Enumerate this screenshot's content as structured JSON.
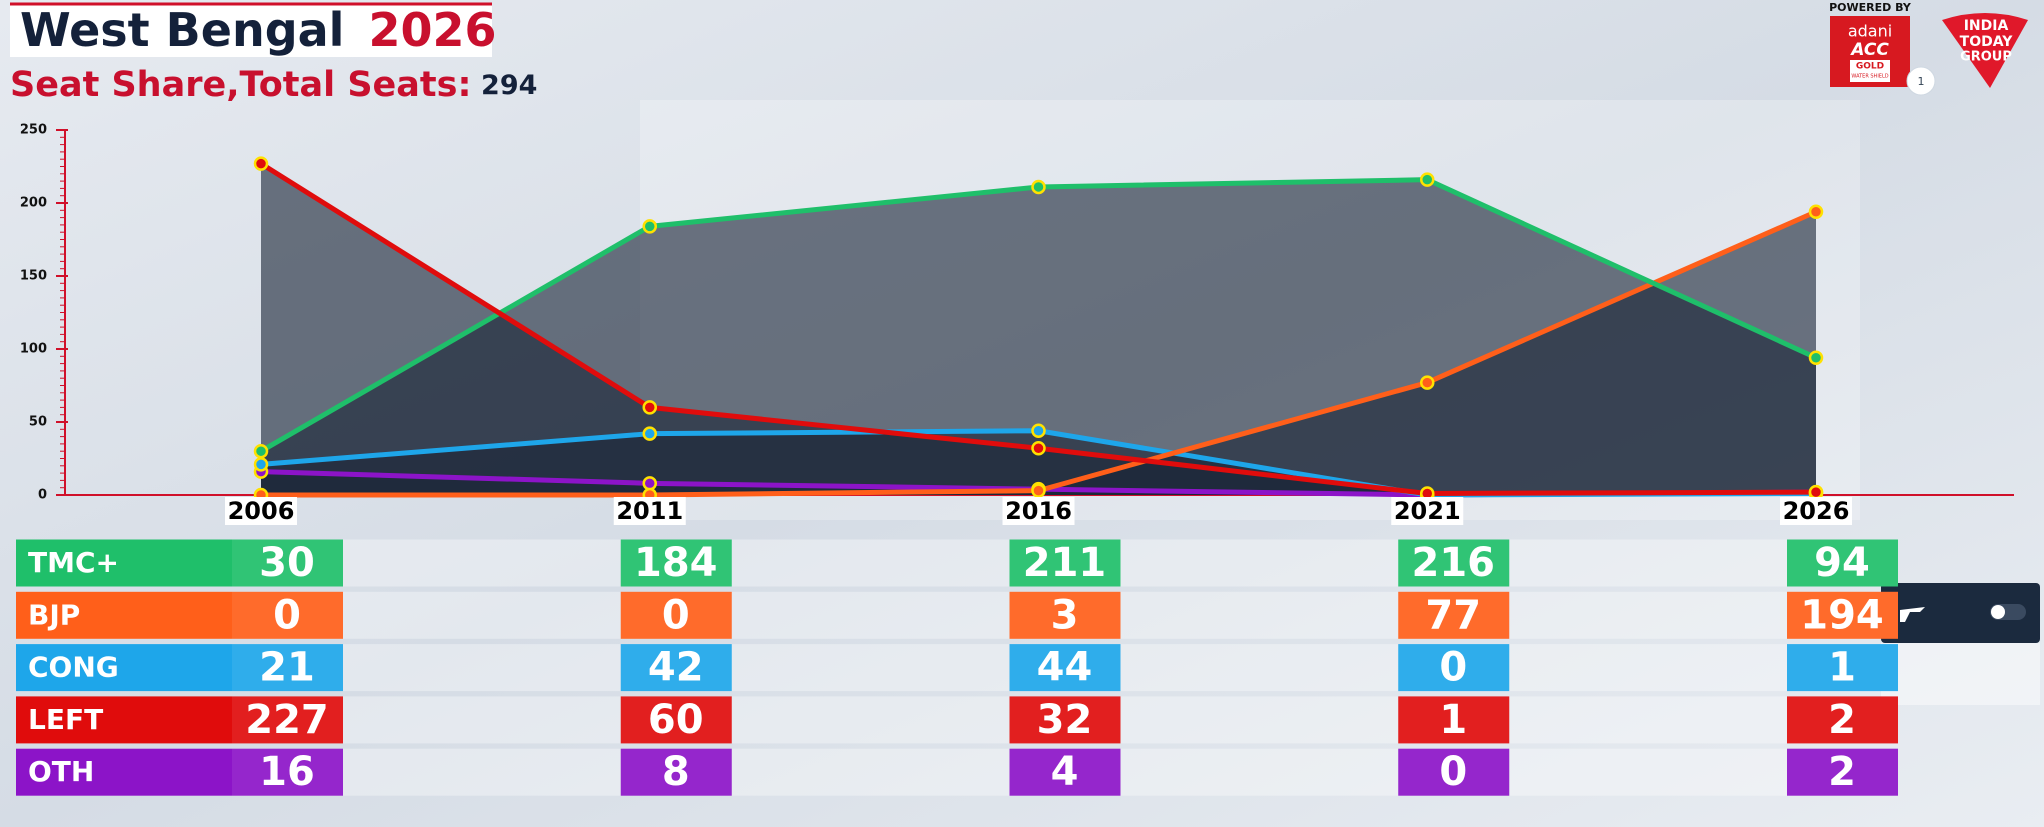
{
  "chart_data": {
    "type": "area",
    "title": "West Bengal",
    "title_year": "2026",
    "subtitle": "Seat Share,Total Seats:",
    "total_seats": 294,
    "categories": [
      "2006",
      "2011",
      "2016",
      "2021",
      "2026"
    ],
    "series": [
      {
        "name": "TMC+",
        "color": "#1fbf6a",
        "values": [
          30,
          184,
          211,
          216,
          94
        ]
      },
      {
        "name": "BJP",
        "color": "#ff5f1a",
        "values": [
          0,
          0,
          3,
          77,
          194
        ]
      },
      {
        "name": "CONG",
        "color": "#1ea6ea",
        "values": [
          21,
          42,
          44,
          0,
          1
        ]
      },
      {
        "name": "LEFT",
        "color": "#e00c0c",
        "values": [
          227,
          60,
          32,
          1,
          2
        ]
      },
      {
        "name": "OTH",
        "color": "#8c14c8",
        "values": [
          16,
          8,
          4,
          0,
          2
        ]
      }
    ],
    "ylim": [
      0,
      250
    ],
    "yticks": [
      0,
      50,
      100,
      150,
      200,
      250
    ]
  },
  "branding": {
    "powered_by": "POWERED BY",
    "sponsor": "adani",
    "sponsor_brand": "ACC",
    "sponsor_line": "GOLD",
    "sponsor_tag": "WATER SHIELD",
    "logo": [
      "INDIA",
      "TODAY",
      "GROUP"
    ],
    "page_indicator": "1"
  }
}
